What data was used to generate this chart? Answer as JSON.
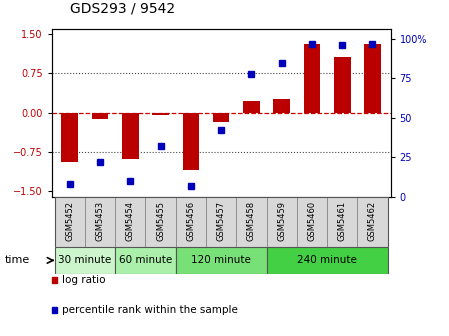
{
  "title": "GDS293 / 9542",
  "samples": [
    "GSM5452",
    "GSM5453",
    "GSM5454",
    "GSM5455",
    "GSM5456",
    "GSM5457",
    "GSM5458",
    "GSM5459",
    "GSM5460",
    "GSM5461",
    "GSM5462"
  ],
  "log_ratio": [
    -0.95,
    -0.12,
    -0.88,
    -0.05,
    -1.1,
    -0.18,
    0.22,
    0.25,
    1.3,
    1.05,
    1.3
  ],
  "percentile": [
    8,
    22,
    10,
    32,
    7,
    42,
    78,
    85,
    97,
    96,
    97
  ],
  "groups": [
    {
      "label": "30 minute",
      "start": 0,
      "end": 1,
      "color": "#ccf5cc"
    },
    {
      "label": "60 minute",
      "start": 2,
      "end": 2,
      "color": "#aaf0aa"
    },
    {
      "label": "120 minute",
      "start": 3,
      "end": 5,
      "color": "#77e077"
    },
    {
      "label": "240 minute",
      "start": 6,
      "end": 9,
      "color": "#44d044"
    }
  ],
  "bar_color": "#bb0000",
  "dot_color": "#0000bb",
  "ylim_left": [
    -1.6,
    1.6
  ],
  "ylim_right": [
    0,
    106.67
  ],
  "yticks_left": [
    -1.5,
    -0.75,
    0,
    0.75,
    1.5
  ],
  "yticks_right": [
    0,
    25,
    50,
    75,
    100
  ],
  "hline_color": "#cc0000",
  "dotted_color": "#444444",
  "xlabel_time": "time",
  "legend_log": "log ratio",
  "legend_pct": "percentile rank within the sample",
  "title_fontsize": 10,
  "tick_fontsize": 7,
  "group_fontsize": 7.5
}
